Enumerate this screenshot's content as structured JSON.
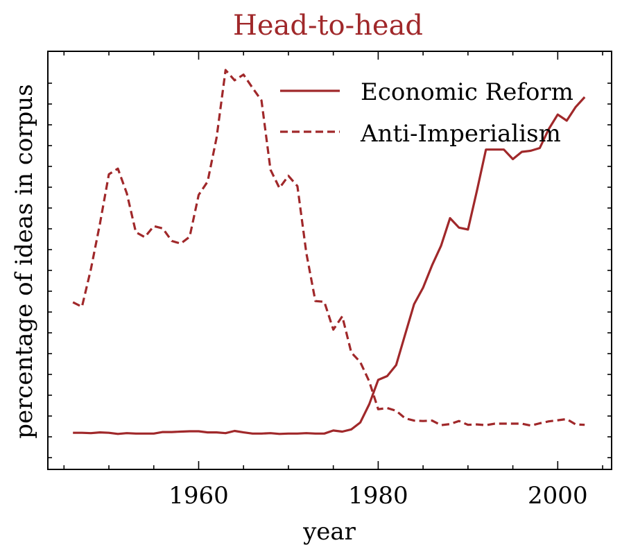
{
  "chart_data": {
    "type": "line",
    "title": "Head-to-head",
    "xlabel": "year",
    "ylabel": "percentage of ideas in corpus",
    "xlim": [
      1943.2,
      2006.0
    ],
    "ylim": [
      0,
      1
    ],
    "x_ticks": [
      1960,
      1980,
      2000
    ],
    "x_tick_labels": [
      "1960",
      "1980",
      "2000"
    ],
    "y_tick_labels_visible": false,
    "legend": {
      "position": "upper right"
    },
    "color": "#a0282a",
    "x": [
      1946,
      1947,
      1948,
      1949,
      1950,
      1951,
      1952,
      1953,
      1954,
      1955,
      1956,
      1957,
      1958,
      1959,
      1960,
      1961,
      1962,
      1963,
      1964,
      1965,
      1966,
      1967,
      1968,
      1969,
      1970,
      1971,
      1972,
      1973,
      1974,
      1975,
      1976,
      1977,
      1978,
      1979,
      1980,
      1981,
      1982,
      1983,
      1984,
      1985,
      1986,
      1987,
      1988,
      1989,
      1990,
      1991,
      1992,
      1993,
      1994,
      1995,
      1996,
      1997,
      1998,
      1999,
      2000,
      2001,
      2002,
      2003
    ],
    "series": [
      {
        "name": "Economic Reform",
        "style": "solid",
        "values": [
          0.047,
          0.047,
          0.046,
          0.048,
          0.047,
          0.044,
          0.046,
          0.045,
          0.045,
          0.045,
          0.049,
          0.049,
          0.05,
          0.051,
          0.051,
          0.048,
          0.048,
          0.046,
          0.052,
          0.048,
          0.045,
          0.045,
          0.046,
          0.044,
          0.045,
          0.045,
          0.046,
          0.045,
          0.045,
          0.053,
          0.05,
          0.056,
          0.074,
          0.122,
          0.186,
          0.196,
          0.225,
          0.305,
          0.385,
          0.428,
          0.487,
          0.538,
          0.611,
          0.586,
          0.581,
          0.683,
          0.791,
          0.791,
          0.791,
          0.766,
          0.785,
          0.788,
          0.795,
          0.845,
          0.883,
          0.867,
          0.903,
          0.929
        ]
      },
      {
        "name": "Anti-Imperialism",
        "style": "dashed",
        "values": [
          0.39,
          0.378,
          0.477,
          0.596,
          0.726,
          0.741,
          0.676,
          0.574,
          0.561,
          0.59,
          0.584,
          0.551,
          0.544,
          0.562,
          0.672,
          0.707,
          0.823,
          1.0,
          0.973,
          0.988,
          0.953,
          0.92,
          0.738,
          0.69,
          0.722,
          0.695,
          0.519,
          0.393,
          0.391,
          0.318,
          0.353,
          0.258,
          0.233,
          0.182,
          0.109,
          0.112,
          0.105,
          0.085,
          0.079,
          0.078,
          0.079,
          0.067,
          0.07,
          0.078,
          0.068,
          0.069,
          0.067,
          0.071,
          0.071,
          0.071,
          0.071,
          0.066,
          0.072,
          0.077,
          0.08,
          0.083,
          0.069,
          0.068
        ]
      }
    ]
  }
}
